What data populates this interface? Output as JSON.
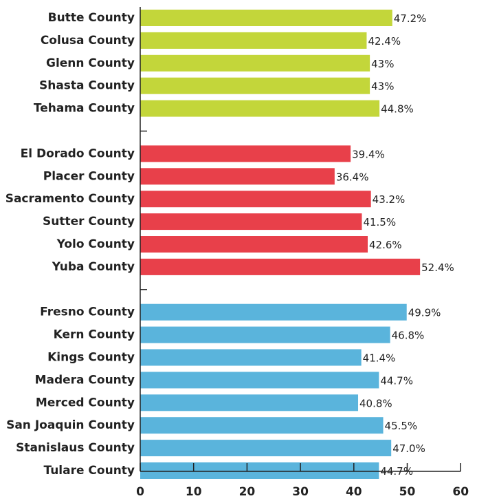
{
  "chart_data": {
    "type": "bar",
    "orientation": "horizontal",
    "xlim": [
      0,
      60
    ],
    "x_ticks": [
      0,
      10,
      20,
      30,
      40,
      50,
      60
    ],
    "grid": false,
    "groups": [
      {
        "color": "#c3d63a",
        "categories": [
          "Butte County",
          "Colusa County",
          "Glenn County",
          "Shasta County",
          "Tehama County"
        ],
        "values": [
          47.2,
          42.4,
          43,
          43,
          44.8
        ],
        "labels": [
          "47.2%",
          "42.4%",
          "43%",
          "43%",
          "44.8%"
        ]
      },
      {
        "color": "#e8404a",
        "categories": [
          "El Dorado County",
          "Placer County",
          "Sacramento County",
          "Sutter County",
          "Yolo County",
          "Yuba County"
        ],
        "values": [
          39.4,
          36.4,
          43.2,
          41.5,
          42.6,
          52.4
        ],
        "labels": [
          "39.4%",
          "36.4%",
          "43.2%",
          "41.5%",
          "42.6%",
          "52.4%"
        ]
      },
      {
        "color": "#5ab4dc",
        "categories": [
          "Fresno County",
          "Kern County",
          "Kings County",
          "Madera County",
          "Merced County",
          "San Joaquin County",
          "Stanislaus County",
          "Tulare County"
        ],
        "values": [
          49.9,
          46.8,
          41.4,
          44.7,
          40.8,
          45.5,
          47.0,
          44.7
        ],
        "labels": [
          "49.9%",
          "46.8%",
          "41.4%",
          "44.7%",
          "40.8%",
          "45.5%",
          "47.0%",
          "44.7%"
        ]
      }
    ]
  }
}
